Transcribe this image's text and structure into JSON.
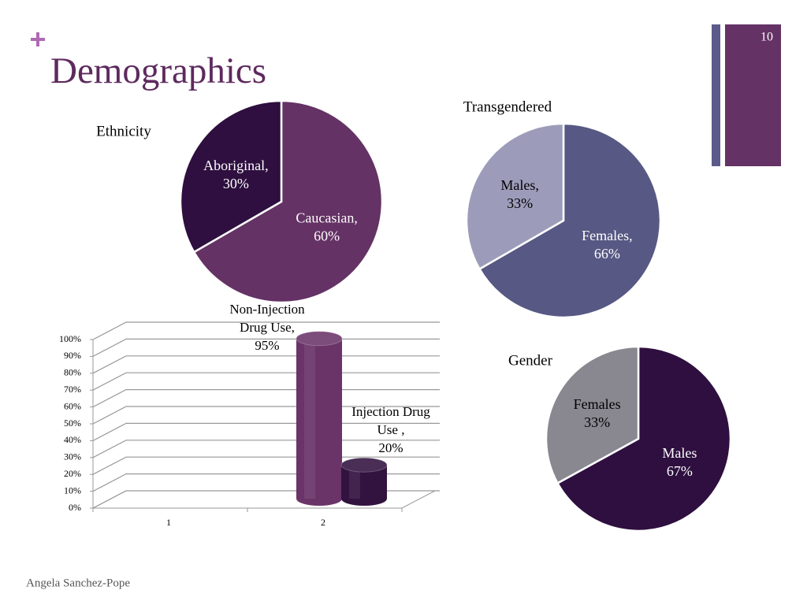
{
  "slide": {
    "title": "Demographics",
    "number": "10",
    "footer": "Angela Sanchez-Pope"
  },
  "chart_data": [
    {
      "type": "pie",
      "title": "Ethnicity",
      "categories": [
        "Caucasian,",
        "Aboriginal,"
      ],
      "values": [
        60,
        30
      ],
      "value_labels": [
        "60%",
        "30%"
      ],
      "colors": [
        "#643264",
        "#2e0f3f"
      ]
    },
    {
      "type": "pie",
      "title": "Transgendered",
      "categories": [
        "Females,",
        "Males,"
      ],
      "values": [
        66,
        33
      ],
      "value_labels": [
        "66%",
        "33%"
      ],
      "colors": [
        "#575883",
        "#9c9cba"
      ]
    },
    {
      "type": "bar",
      "categories": [
        "1",
        "2"
      ],
      "series": [
        {
          "name": "Non-Injection Drug Use,",
          "color": "#6a3468",
          "values": [
            null,
            95
          ],
          "value_labels": [
            null,
            "95%"
          ]
        },
        {
          "name": "Injection Drug Use ,",
          "color": "#32123f",
          "values": [
            null,
            20
          ],
          "value_labels": [
            null,
            "20%"
          ]
        }
      ],
      "ylim": [
        0,
        100
      ],
      "yticks": [
        {
          "value": 0,
          "label": "0%"
        },
        {
          "value": 10,
          "label": "10%"
        },
        {
          "value": 20,
          "label": "20%"
        },
        {
          "value": 30,
          "label": "30%"
        },
        {
          "value": 40,
          "label": "40%"
        },
        {
          "value": 50,
          "label": "50%"
        },
        {
          "value": 60,
          "label": "60%"
        },
        {
          "value": 70,
          "label": "70%"
        },
        {
          "value": 80,
          "label": "80%"
        },
        {
          "value": 90,
          "label": "90%"
        },
        {
          "value": 100,
          "label": "100%"
        }
      ],
      "grid": true
    },
    {
      "type": "pie",
      "title": "Gender",
      "categories": [
        "Males",
        "Females"
      ],
      "values": [
        67,
        33
      ],
      "value_labels": [
        "67%",
        "33%"
      ],
      "colors": [
        "#2e0f3f",
        "#898790"
      ]
    }
  ]
}
